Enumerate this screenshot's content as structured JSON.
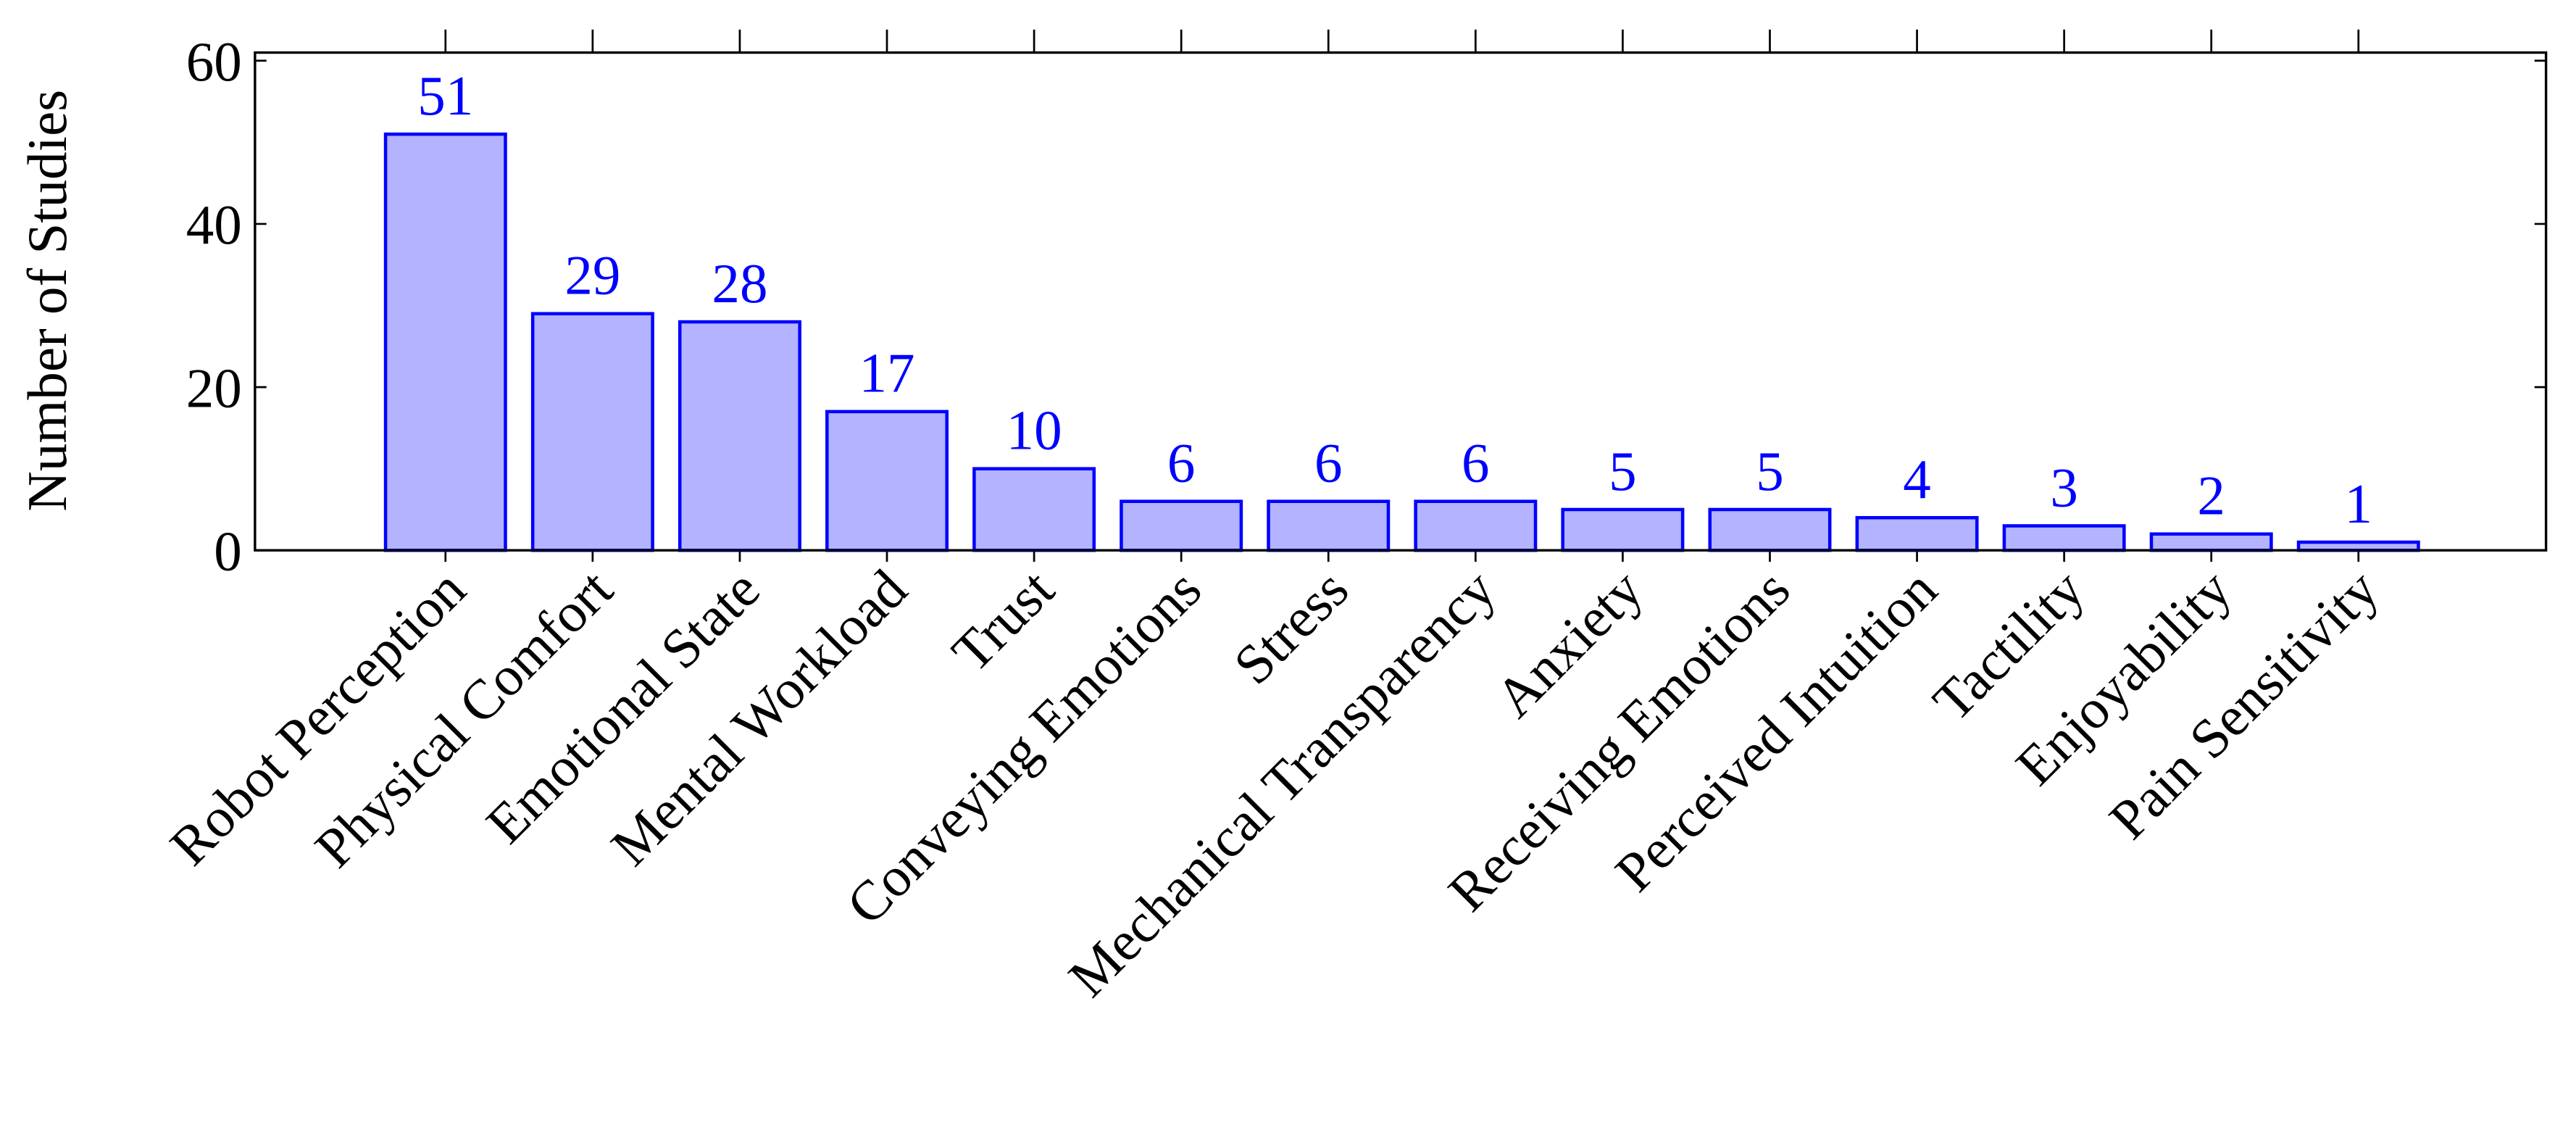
{
  "chart_data": {
    "type": "bar",
    "ylabel": "Number of Studies",
    "categories": [
      "Robot Perception",
      "Physical Comfort",
      "Emotional State",
      "Mental Workload",
      "Trust",
      "Conveying Emotions",
      "Stress",
      "Mechanical Transparency",
      "Anxiety",
      "Receiving Emotions",
      "Perceived Intuition",
      "Tactility",
      "Enjoyability",
      "Pain Sensitivity"
    ],
    "values": [
      51,
      29,
      28,
      17,
      10,
      6,
      6,
      6,
      5,
      5,
      4,
      3,
      2,
      1
    ],
    "color": "#b3b3ff",
    "edgecolor": "#0000ff",
    "label_color": "#0000ff",
    "ylim": [
      0,
      61
    ],
    "yticks": [
      0,
      20,
      40,
      60
    ]
  }
}
